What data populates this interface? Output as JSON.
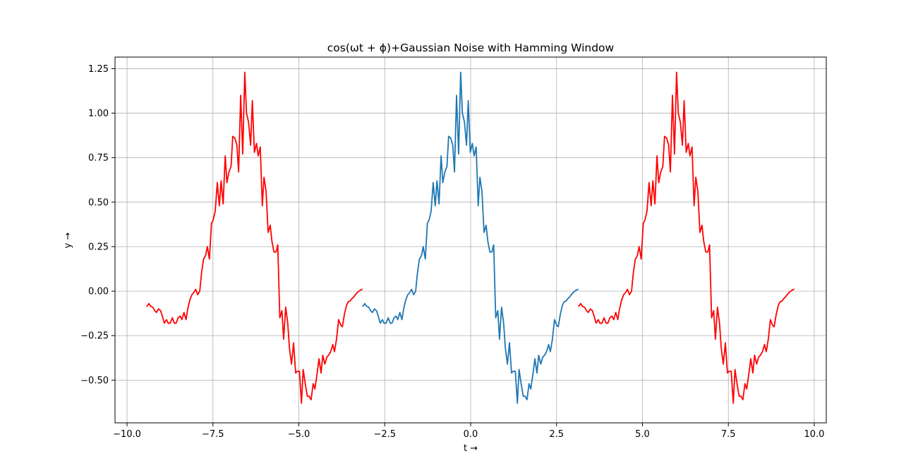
{
  "chart_data": {
    "type": "line",
    "title": "cos(ωt + ϕ)+Gaussian Noise with Hamming Window",
    "xlabel": "t →",
    "ylabel": "y →",
    "xlim": [
      -10.35,
      10.35
    ],
    "ylim": [
      -0.74,
      1.315
    ],
    "grid": true,
    "x_ticks": [
      -10.0,
      -7.5,
      -5.0,
      -2.5,
      0.0,
      2.5,
      5.0,
      7.5,
      10.0
    ],
    "x_tick_labels": [
      "−10.0",
      "−7.5",
      "−5.0",
      "−2.5",
      "0.0",
      "2.5",
      "5.0",
      "7.5",
      "10.0"
    ],
    "y_ticks": [
      -0.5,
      -0.25,
      0.0,
      0.25,
      0.5,
      0.75,
      1.0,
      1.25
    ],
    "y_tick_labels": [
      "−0.50",
      "−0.25",
      "0.00",
      "0.25",
      "0.50",
      "0.75",
      "1.00",
      "1.25"
    ],
    "base_segment": {
      "x": [
        -3.14,
        -3.08,
        -3.03,
        -2.97,
        -2.91,
        -2.86,
        -2.8,
        -2.74,
        -2.69,
        -2.63,
        -2.57,
        -2.52,
        -2.46,
        -2.4,
        -2.34,
        -2.29,
        -2.23,
        -2.17,
        -2.12,
        -2.06,
        -2.0,
        -1.95,
        -1.89,
        -1.83,
        -1.78,
        -1.72,
        -1.66,
        -1.6,
        -1.55,
        -1.49,
        -1.43,
        -1.38,
        -1.32,
        -1.26,
        -1.21,
        -1.15,
        -1.09,
        -1.03,
        -0.98,
        -0.92,
        -0.86,
        -0.81,
        -0.75,
        -0.69,
        -0.64,
        -0.58,
        -0.52,
        -0.47,
        -0.41,
        -0.35,
        -0.29,
        -0.24,
        -0.18,
        -0.12,
        -0.07,
        -0.01,
        0.05,
        0.1,
        0.16,
        0.22,
        0.27,
        0.33,
        0.39,
        0.45,
        0.5,
        0.56,
        0.62,
        0.67,
        0.73,
        0.79,
        0.84,
        0.9,
        0.96,
        1.01,
        1.07,
        1.13,
        1.19,
        1.24,
        1.3,
        1.36,
        1.41,
        1.47,
        1.53,
        1.58,
        1.64,
        1.7,
        1.75,
        1.81,
        1.87,
        1.93,
        1.98,
        2.04,
        2.1,
        2.15,
        2.21,
        2.27,
        2.32,
        2.38,
        2.44,
        2.5,
        2.55,
        2.61,
        2.67,
        2.72,
        2.78,
        2.84,
        2.89,
        2.95,
        3.01,
        3.07,
        3.12
      ],
      "y": [
        -0.085,
        -0.07,
        -0.085,
        -0.09,
        -0.11,
        -0.12,
        -0.1,
        -0.11,
        -0.14,
        -0.18,
        -0.16,
        -0.18,
        -0.18,
        -0.15,
        -0.18,
        -0.18,
        -0.15,
        -0.14,
        -0.16,
        -0.12,
        -0.16,
        -0.1,
        -0.05,
        -0.02,
        -0.01,
        0.01,
        -0.02,
        0.0,
        0.1,
        0.18,
        0.2,
        0.25,
        0.18,
        0.38,
        0.4,
        0.45,
        0.61,
        0.48,
        0.62,
        0.49,
        0.76,
        0.61,
        0.67,
        0.7,
        0.87,
        0.86,
        0.82,
        0.67,
        1.1,
        0.77,
        1.23,
        1.0,
        0.95,
        0.82,
        1.07,
        0.78,
        0.83,
        0.76,
        0.81,
        0.48,
        0.64,
        0.56,
        0.33,
        0.37,
        0.28,
        0.22,
        0.22,
        0.26,
        -0.15,
        -0.11,
        -0.27,
        -0.09,
        -0.18,
        -0.32,
        -0.41,
        -0.29,
        -0.46,
        -0.45,
        -0.45,
        -0.63,
        -0.44,
        -0.52,
        -0.59,
        -0.59,
        -0.61,
        -0.52,
        -0.55,
        -0.47,
        -0.38,
        -0.46,
        -0.36,
        -0.41,
        -0.37,
        -0.36,
        -0.34,
        -0.3,
        -0.34,
        -0.27,
        -0.16,
        -0.19,
        -0.2,
        -0.13,
        -0.08,
        -0.06,
        -0.055,
        -0.04,
        -0.03,
        -0.015,
        -0.003,
        0.005,
        0.01
      ]
    },
    "series": [
      {
        "offset": -6.2832,
        "color": "#ff0000"
      },
      {
        "offset": 0.0,
        "color": "#1f77b4"
      },
      {
        "offset": 6.2832,
        "color": "#ff0000"
      }
    ]
  }
}
